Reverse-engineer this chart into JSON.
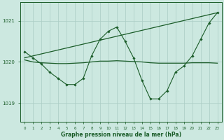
{
  "background_color": "#cce8e0",
  "grid_color": "#aaccc4",
  "line_color": "#1a5c28",
  "title": "Graphe pression niveau de la mer (hPa)",
  "xlim": [
    -0.5,
    23.5
  ],
  "ylim": [
    1018.55,
    1021.45
  ],
  "yticks": [
    1019,
    1020,
    1021
  ],
  "xticks": [
    0,
    1,
    2,
    3,
    4,
    5,
    6,
    7,
    8,
    9,
    10,
    11,
    12,
    13,
    14,
    15,
    16,
    17,
    18,
    19,
    20,
    21,
    22,
    23
  ],
  "series_wiggly": {
    "x": [
      0,
      1,
      2,
      3,
      4,
      5,
      6,
      7,
      8,
      9,
      10,
      11,
      12,
      13,
      14,
      15,
      16,
      17,
      18,
      19,
      20,
      21,
      22,
      23
    ],
    "y": [
      1020.25,
      1020.1,
      1019.95,
      1019.75,
      1019.6,
      1019.45,
      1019.45,
      1019.6,
      1020.15,
      1020.55,
      1020.75,
      1020.85,
      1020.5,
      1020.1,
      1019.55,
      1019.1,
      1019.1,
      1019.3,
      1019.75,
      1019.9,
      1020.15,
      1020.55,
      1020.95,
      1021.2
    ]
  },
  "series_trend": {
    "x": [
      0,
      23
    ],
    "y": [
      1020.1,
      1021.2
    ]
  },
  "series_flat": {
    "x": [
      0,
      1,
      2,
      3,
      4,
      5,
      6,
      7,
      8,
      9,
      10,
      11,
      12,
      13,
      14,
      15,
      16,
      17,
      18,
      19,
      20,
      21,
      22,
      23
    ],
    "y": [
      1020.05,
      1020.0,
      1019.98,
      1019.97,
      1019.96,
      1019.96,
      1019.97,
      1019.98,
      1020.0,
      1020.02,
      1020.02,
      1020.03,
      1020.02,
      1020.01,
      1020.0,
      1019.98,
      1019.97,
      1019.97,
      1019.97,
      1019.97,
      1019.98,
      1019.98,
      1019.98,
      1019.97
    ]
  }
}
